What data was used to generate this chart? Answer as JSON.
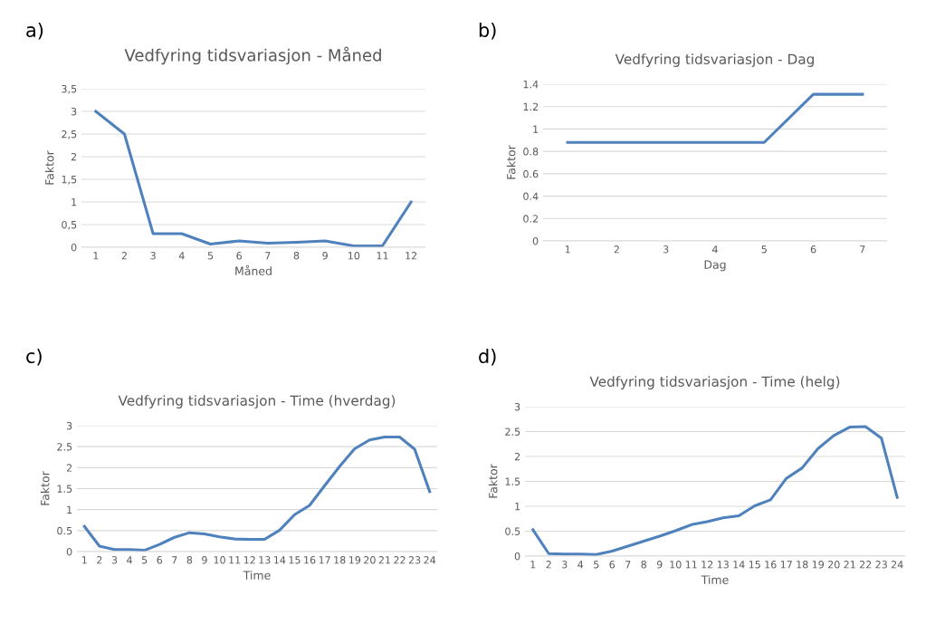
{
  "chart_data": [
    {
      "type": "line",
      "title": "Vedfyring tidsvariasjon - Måned",
      "xlabel": "Måned",
      "ylabel": "Faktor",
      "annotations": [
        "a)"
      ],
      "categories": [
        "1",
        "2",
        "3",
        "4",
        "5",
        "6",
        "7",
        "8",
        "9",
        "10",
        "11",
        "12"
      ],
      "series": [
        {
          "color": "#4f81bd",
          "values": [
            3,
            2.5,
            0.3,
            0.3,
            0.07,
            0.14,
            0.09,
            0.11,
            0.14,
            0.03,
            0.03,
            1
          ]
        }
      ],
      "ylim": [
        0,
        3.5
      ],
      "yticks": [
        0,
        {
          "value": 0.5,
          "label": "0,5"
        },
        1,
        {
          "value": 1.5,
          "label": "1,5"
        },
        2,
        {
          "value": 2.5,
          "label": "2,5"
        },
        3,
        {
          "value": 3.5,
          "label": "3,5"
        }
      ],
      "grid": "y"
    },
    {
      "type": "line",
      "title": "Vedfyring tidsvariasjon - Dag",
      "xlabel": "Dag",
      "ylabel": "Faktor",
      "annotations": [
        "b)"
      ],
      "categories": [
        "1",
        "2",
        "3",
        "4",
        "5",
        "6",
        "7"
      ],
      "series": [
        {
          "color": "#4f81bd",
          "values": [
            0.88,
            0.88,
            0.88,
            0.88,
            0.88,
            1.31,
            1.31
          ]
        }
      ],
      "ylim": [
        0,
        1.4
      ],
      "yticks": [
        0,
        0.2,
        0.4,
        0.6,
        0.8,
        1,
        1.2,
        1.4
      ],
      "grid": "y"
    },
    {
      "type": "line",
      "title": "Vedfyring tidsvariasjon - Time (hverdag)",
      "xlabel": "Time",
      "ylabel": "Faktor",
      "annotations": [
        "c)"
      ],
      "categories": [
        "1",
        "2",
        "3",
        "4",
        "5",
        "6",
        "7",
        "8",
        "9",
        "10",
        "11",
        "12",
        "13",
        "14",
        "15",
        "16",
        "17",
        "18",
        "19",
        "20",
        "21",
        "22",
        "23",
        "24"
      ],
      "series": [
        {
          "color": "#4f81bd",
          "values": [
            0.6,
            0.13,
            0.05,
            0.05,
            0.03,
            0.17,
            0.34,
            0.45,
            0.42,
            0.35,
            0.3,
            0.29,
            0.29,
            0.51,
            0.88,
            1.1,
            1.57,
            2.03,
            2.45,
            2.66,
            2.73,
            2.73,
            2.44,
            1.43
          ]
        }
      ],
      "ylim": [
        0,
        3
      ],
      "yticks": [
        0,
        0.5,
        1,
        1.5,
        2,
        2.5,
        3
      ],
      "grid": "y"
    },
    {
      "type": "line",
      "title": "Vedfyring tidsvariasjon - Time (helg)",
      "xlabel": "Time",
      "ylabel": "Faktor",
      "annotations": [
        "d)"
      ],
      "categories": [
        "1",
        "2",
        "3",
        "4",
        "5",
        "6",
        "7",
        "8",
        "9",
        "10",
        "11",
        "12",
        "13",
        "14",
        "15",
        "16",
        "17",
        "18",
        "19",
        "20",
        "21",
        "22",
        "23",
        "24"
      ],
      "series": [
        {
          "color": "#4f81bd",
          "values": [
            0.53,
            0.05,
            0.04,
            0.04,
            0.03,
            0.1,
            0.2,
            0.3,
            0.4,
            0.51,
            0.63,
            0.69,
            0.77,
            0.81,
            1.01,
            1.13,
            1.56,
            1.77,
            2.16,
            2.42,
            2.59,
            2.6,
            2.37,
            1.18
          ]
        }
      ],
      "ylim": [
        0,
        3
      ],
      "yticks": [
        0,
        0.5,
        1,
        1.5,
        2,
        2.5,
        3
      ],
      "grid": "y"
    }
  ]
}
